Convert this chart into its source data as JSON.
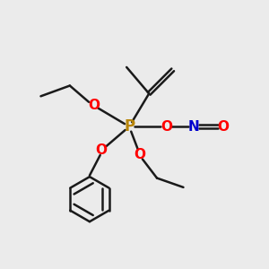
{
  "background_color": "#ebebeb",
  "p_color": "#b8860b",
  "o_color": "#ff0000",
  "n_color": "#0000cd",
  "bond_color": "#1a1a1a",
  "bond_width": 1.8,
  "figsize": [
    3.0,
    3.0
  ],
  "dpi": 100,
  "xlim": [
    0,
    10
  ],
  "ylim": [
    0,
    10
  ]
}
